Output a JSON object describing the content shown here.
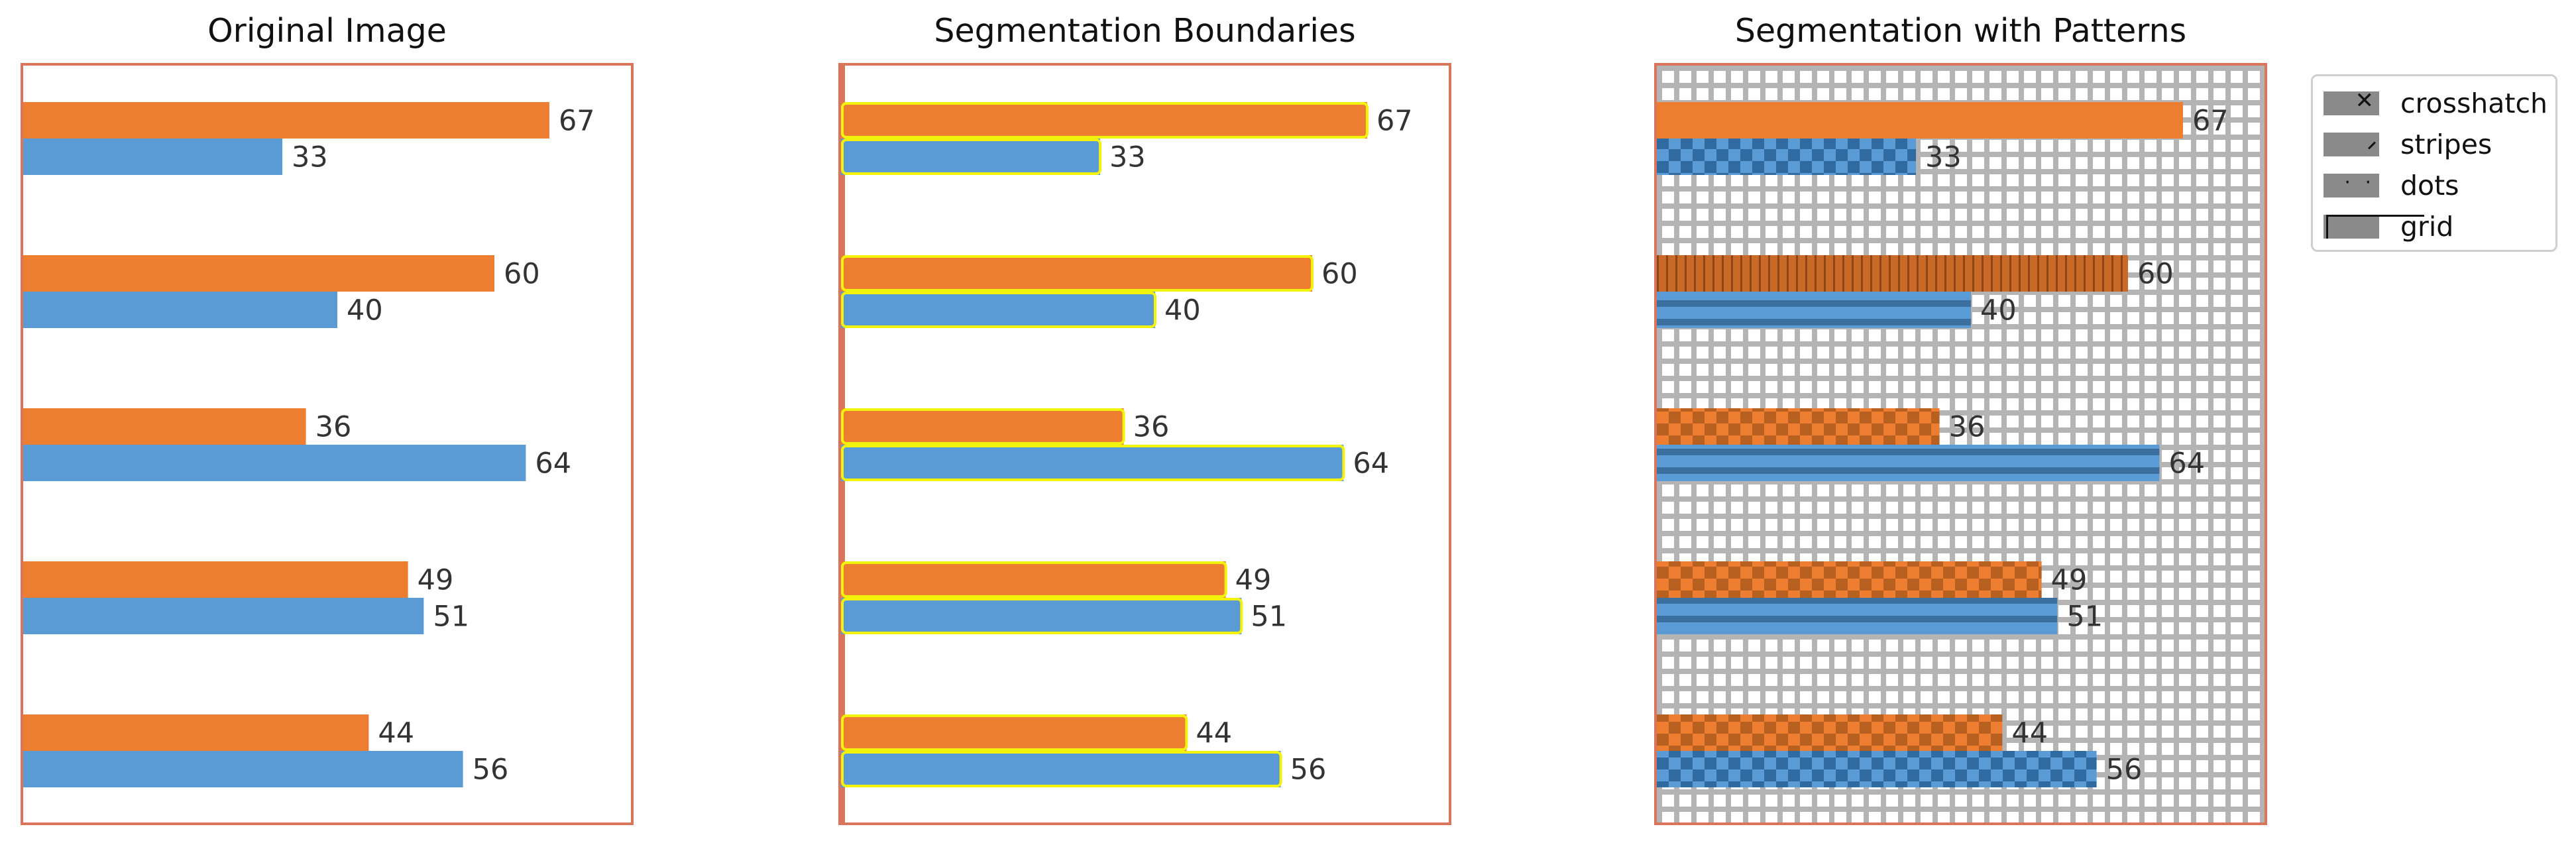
{
  "titles": {
    "original": "Original Image",
    "boundaries": "Segmentation Boundaries",
    "patterns": "Segmentation with Patterns"
  },
  "colors": {
    "orange": "#ed7d31",
    "blue": "#5b9bd5",
    "frame": "#d9755a",
    "boundary": "#f2f20a",
    "pattern_gray": "#b4b4b4"
  },
  "legend": {
    "items": [
      {
        "label": "crosshatch",
        "icon": "crosshatch-swatch-icon"
      },
      {
        "label": "stripes",
        "icon": "stripes-swatch-icon"
      },
      {
        "label": "dots",
        "icon": "dots-swatch-icon"
      },
      {
        "label": "grid",
        "icon": "grid-swatch-icon"
      }
    ]
  },
  "chart_data": {
    "type": "bar",
    "orientation": "horizontal",
    "categories": [
      "",
      "",
      "",
      "",
      ""
    ],
    "series": [
      {
        "color": "#ed7d31",
        "values": [
          67,
          60,
          36,
          49,
          44
        ]
      },
      {
        "color": "#5b9bd5",
        "values": [
          33,
          40,
          64,
          51,
          56
        ]
      }
    ],
    "xlim": [
      0,
      80
    ],
    "grid": false,
    "legend_position": "right"
  }
}
